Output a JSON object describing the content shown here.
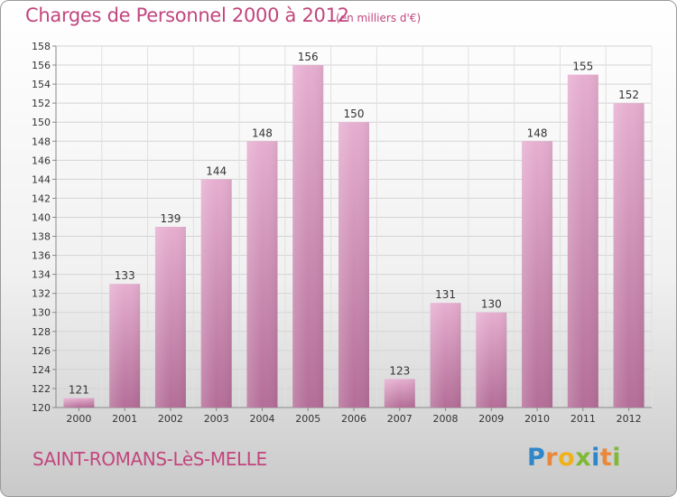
{
  "header": {
    "title": "Charges de Personnel 2000 à 2012",
    "unit_note": "(en milliers d'€)"
  },
  "footer": {
    "commune": "SAINT-ROMANS-LèS-MELLE",
    "brand_letters": [
      {
        "char": "P",
        "color": "#2f86c8"
      },
      {
        "char": "r",
        "color": "#e9883a"
      },
      {
        "char": "o",
        "color": "#f0b21c"
      },
      {
        "char": "x",
        "color": "#7fb935"
      },
      {
        "char": "i",
        "color": "#2f86c8"
      },
      {
        "char": "t",
        "color": "#e9883a"
      },
      {
        "char": "i",
        "color": "#7fb935"
      }
    ]
  },
  "colors": {
    "accent": "#c2467e",
    "bar_light": "#e6aed0",
    "bar_dark": "#b46e98"
  },
  "chart_data": {
    "type": "bar",
    "categories": [
      "2000",
      "2001",
      "2002",
      "2003",
      "2004",
      "2005",
      "2006",
      "2007",
      "2008",
      "2009",
      "2010",
      "2011",
      "2012"
    ],
    "values": [
      121,
      133,
      139,
      144,
      148,
      156,
      150,
      123,
      131,
      130,
      148,
      155,
      152
    ],
    "ylim": [
      120,
      158
    ],
    "yticks": [
      120,
      122,
      124,
      126,
      128,
      130,
      132,
      134,
      136,
      138,
      140,
      142,
      144,
      146,
      148,
      150,
      152,
      154,
      156,
      158
    ],
    "grid": true,
    "legend": "none"
  }
}
